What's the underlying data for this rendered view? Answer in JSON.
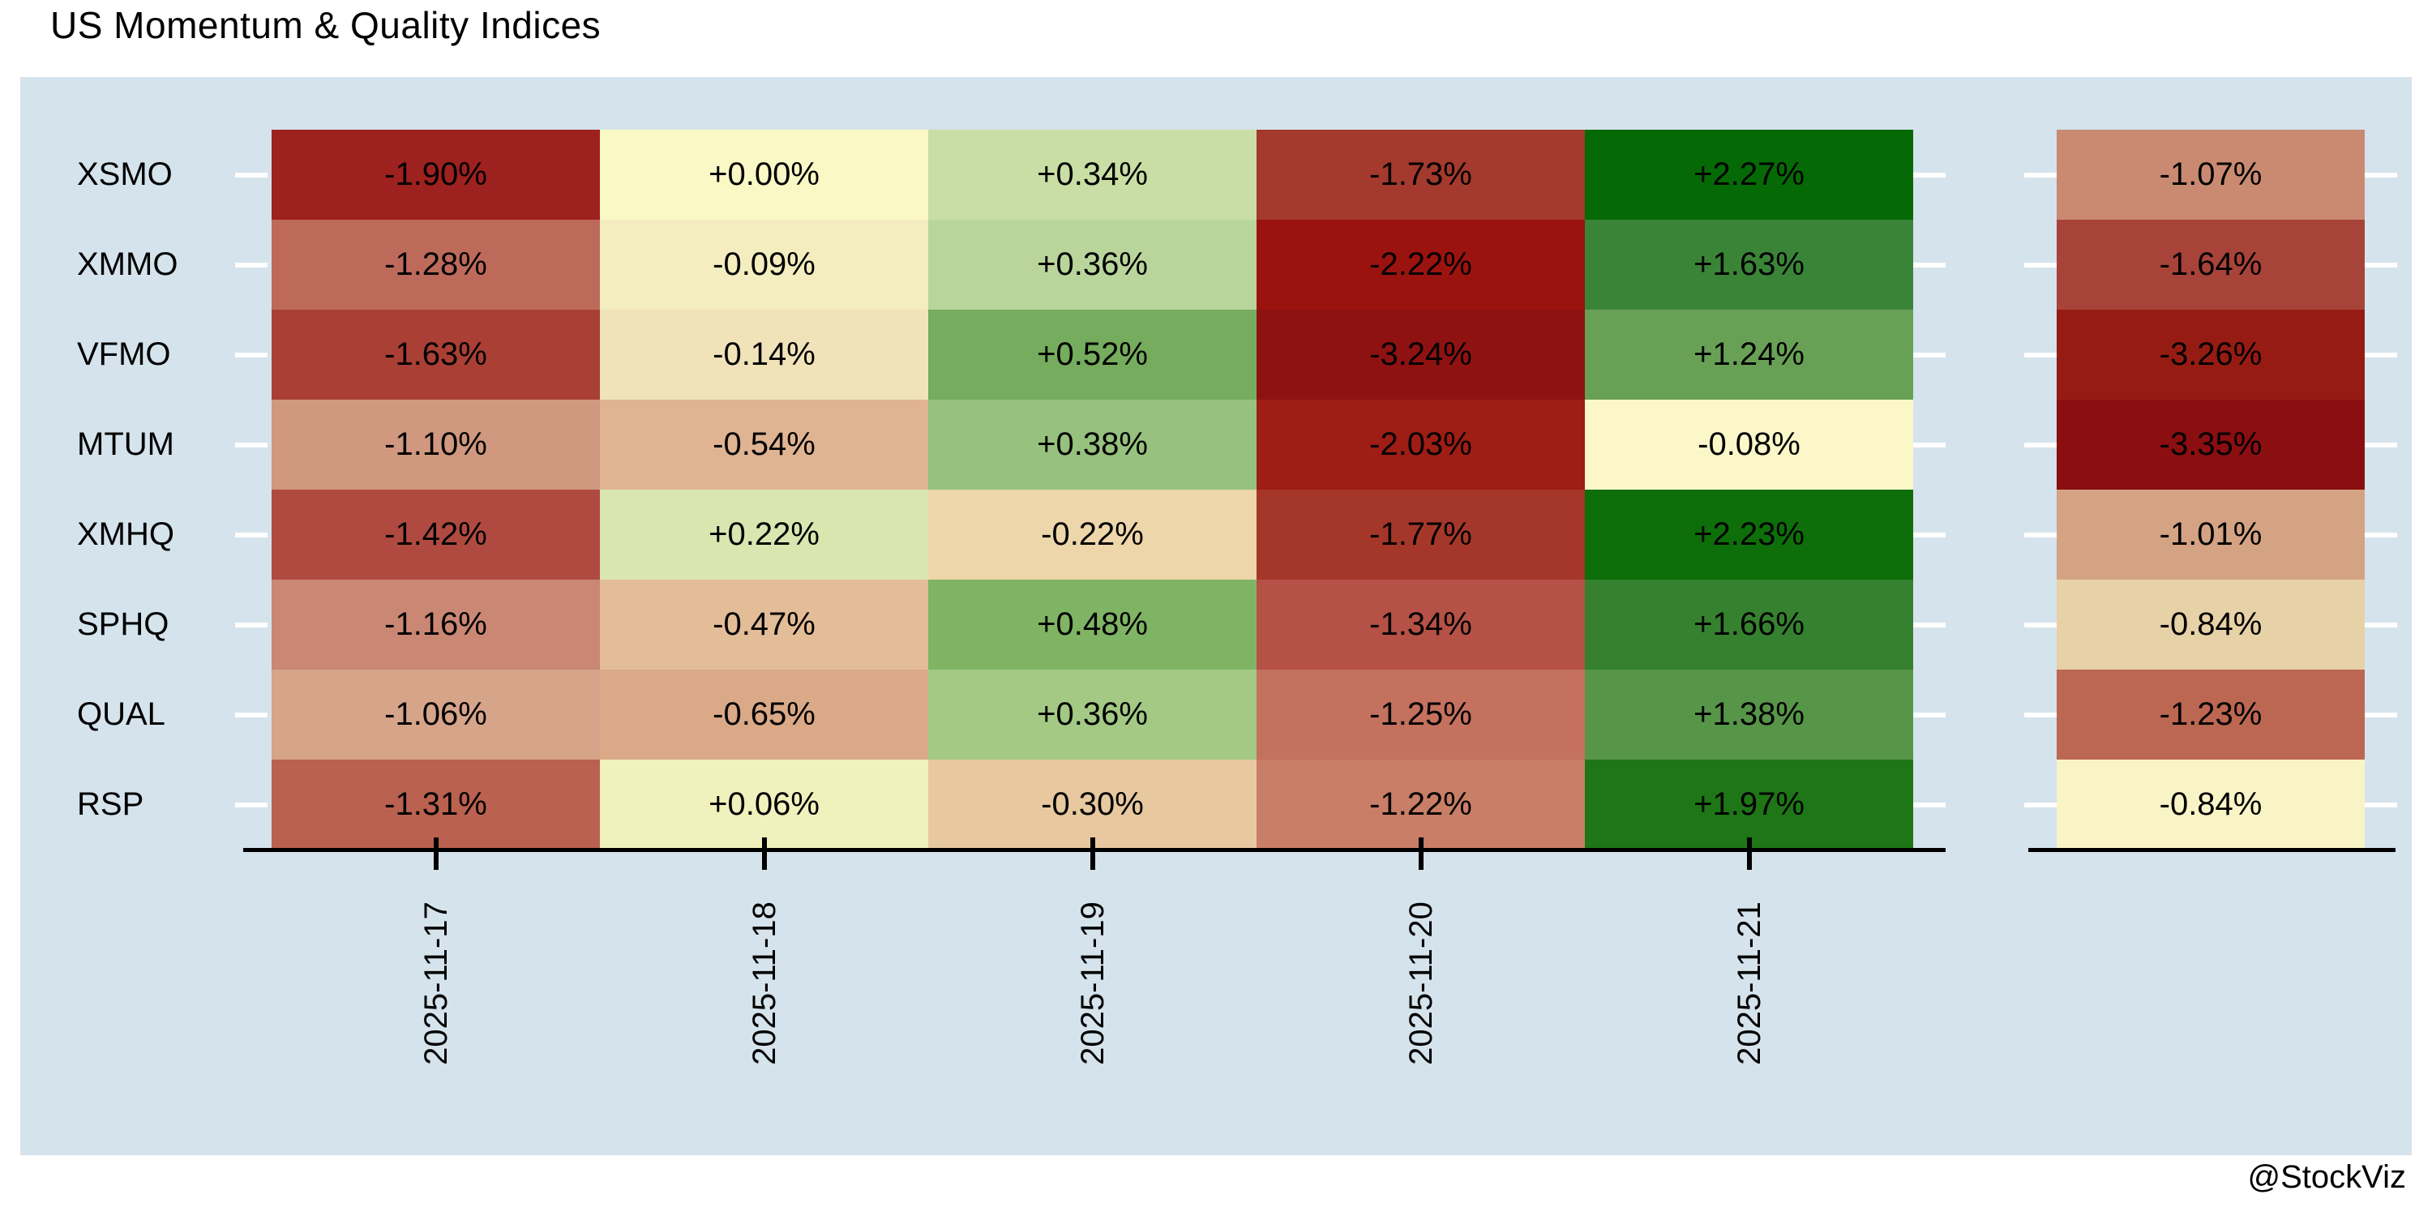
{
  "title": "US Momentum & Quality Indices",
  "attribution": "@StockViz",
  "colors": {
    "page_bg": "#ffffff",
    "panel_bg": "#d5e3ec",
    "axis": "#000000",
    "row_tick": "#ffffff",
    "cell_text": "#000000"
  },
  "chart_data": {
    "type": "heatmap",
    "title": "US Momentum & Quality Indices",
    "x_labels": [
      "2025-11-17",
      "2025-11-18",
      "2025-11-19",
      "2025-11-20",
      "2025-11-21"
    ],
    "y_labels": [
      "XSMO",
      "XMMO",
      "VFMO",
      "MTUM",
      "XMHQ",
      "SPHQ",
      "QUAL",
      "RSP"
    ],
    "value_format": "signed percent, two decimals",
    "legend": "off",
    "layout_hints": {
      "grid": "off",
      "summary_panel": "detached single column at right with no x-axis label",
      "x_tick_label_rotation": -90
    },
    "series": [
      {
        "name": "XSMO",
        "values": [
          -1.9,
          0.0,
          0.34,
          -1.73,
          2.27
        ],
        "labels": [
          "-1.90%",
          "+0.00%",
          "+0.34%",
          "-1.73%",
          "+2.27%"
        ],
        "colors": [
          "#9d211e",
          "#faf8c5",
          "#c9dea5",
          "#a4392d",
          "#056906"
        ],
        "summary_value": -1.07,
        "summary_label": "-1.07%",
        "summary_color": "#c98a71"
      },
      {
        "name": "XMMO",
        "values": [
          -1.28,
          -0.09,
          0.36,
          -2.22,
          1.63
        ],
        "labels": [
          "-1.28%",
          "-0.09%",
          "+0.36%",
          "-2.22%",
          "+1.63%"
        ],
        "colors": [
          "#bd6a5b",
          "#f3edbf",
          "#b9d59c",
          "#9b130f",
          "#3a8438"
        ],
        "summary_value": -1.64,
        "summary_label": "-1.64%",
        "summary_color": "#a84339"
      },
      {
        "name": "VFMO",
        "values": [
          -1.63,
          -0.14,
          0.52,
          -3.24,
          1.24
        ],
        "labels": [
          "-1.63%",
          "-0.14%",
          "+0.52%",
          "-3.24%",
          "+1.24%"
        ],
        "colors": [
          "#a93f35",
          "#f0e3b9",
          "#76ac5d",
          "#8e1212",
          "#68a156"
        ],
        "summary_value": -3.26,
        "summary_label": "-3.26%",
        "summary_color": "#961c13"
      },
      {
        "name": "MTUM",
        "values": [
          -1.1,
          -0.54,
          0.38,
          -2.03,
          -0.08
        ],
        "labels": [
          "-1.10%",
          "-0.54%",
          "+0.38%",
          "-2.03%",
          "-0.08%"
        ],
        "colors": [
          "#d0987f",
          "#e0b492",
          "#97c17e",
          "#9e1d15",
          "#fbf7c8"
        ],
        "summary_value": -3.35,
        "summary_label": "-3.35%",
        "summary_color": "#8b0e10"
      },
      {
        "name": "XMHQ",
        "values": [
          -1.42,
          0.22,
          -0.22,
          -1.77,
          2.23
        ],
        "labels": [
          "-1.42%",
          "+0.22%",
          "-0.22%",
          "-1.77%",
          "+2.23%"
        ],
        "colors": [
          "#b04a40",
          "#d9e6b0",
          "#edd6aa",
          "#a5372a",
          "#0e6e0a"
        ],
        "summary_value": -1.01,
        "summary_label": "-1.01%",
        "summary_color": "#d4a383"
      },
      {
        "name": "SPHQ",
        "values": [
          -1.16,
          -0.47,
          0.48,
          -1.34,
          1.66
        ],
        "labels": [
          "-1.16%",
          "-0.47%",
          "+0.48%",
          "-1.34%",
          "+1.66%"
        ],
        "colors": [
          "#ca8773",
          "#e3bc98",
          "#80b465",
          "#b55146",
          "#35812f"
        ],
        "summary_value": -0.84,
        "summary_label": "-0.84%",
        "summary_color": "#e7d1a6"
      },
      {
        "name": "QUAL",
        "values": [
          -1.06,
          -0.65,
          0.36,
          -1.25,
          1.38
        ],
        "labels": [
          "-1.06%",
          "-0.65%",
          "+0.36%",
          "-1.25%",
          "+1.38%"
        ],
        "colors": [
          "#d6a489",
          "#daa987",
          "#a3c984",
          "#c4715f",
          "#579549"
        ],
        "summary_value": -1.23,
        "summary_label": "-1.23%",
        "summary_color": "#bc6752"
      },
      {
        "name": "RSP",
        "values": [
          -1.31,
          0.06,
          -0.3,
          -1.22,
          1.97
        ],
        "labels": [
          "-1.31%",
          "+0.06%",
          "-0.30%",
          "-1.22%",
          "+1.97%"
        ],
        "colors": [
          "#ba614f",
          "#f0f1bc",
          "#e7c89f",
          "#c87e67",
          "#1e7616"
        ],
        "summary_value": -0.84,
        "summary_label": "-0.84%",
        "summary_color": "#f9f4c6"
      }
    ]
  }
}
